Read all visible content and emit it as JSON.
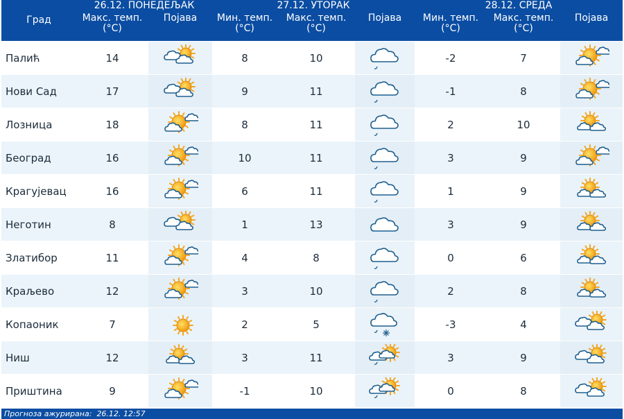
{
  "headers": {
    "city": "Град",
    "day1": "26.12. ПОНЕДЕЉАК",
    "day2": "27.12. УТОРАК",
    "day3": "28.12. СРЕДА",
    "max_temp": "Макс. темп. (°C)",
    "min_temp": "Мин. темп. (°C)",
    "phenomenon": "Појава"
  },
  "rows": [
    {
      "city": "Палић",
      "d1_max": "14",
      "d1_icon": "cloudy-sun",
      "d2_min": "8",
      "d2_max": "10",
      "d2_icon": "cloud-drizzle",
      "d3_min": "-2",
      "d3_max": "7",
      "d3_icon": "sun-cloud"
    },
    {
      "city": "Нови Сад",
      "d1_max": "17",
      "d1_icon": "cloudy-sun",
      "d2_min": "9",
      "d2_max": "11",
      "d2_icon": "cloud-drizzle",
      "d3_min": "-1",
      "d3_max": "8",
      "d3_icon": "sun-cloud"
    },
    {
      "city": "Лозница",
      "d1_max": "18",
      "d1_icon": "sun-cloud",
      "d2_min": "8",
      "d2_max": "11",
      "d2_icon": "cloud-drizzle",
      "d3_min": "2",
      "d3_max": "10",
      "d3_icon": "partly-cloudy"
    },
    {
      "city": "Београд",
      "d1_max": "16",
      "d1_icon": "sun-cloud",
      "d2_min": "10",
      "d2_max": "11",
      "d2_icon": "cloud-drizzle",
      "d3_min": "3",
      "d3_max": "9",
      "d3_icon": "sun-cloud"
    },
    {
      "city": "Крагујевац",
      "d1_max": "16",
      "d1_icon": "sun-cloud",
      "d2_min": "6",
      "d2_max": "11",
      "d2_icon": "cloud-drizzle",
      "d3_min": "1",
      "d3_max": "9",
      "d3_icon": "partly-cloudy"
    },
    {
      "city": "Неготин",
      "d1_max": "8",
      "d1_icon": "cloudy-sun",
      "d2_min": "1",
      "d2_max": "13",
      "d2_icon": "cloud",
      "d3_min": "3",
      "d3_max": "9",
      "d3_icon": "partly-cloudy"
    },
    {
      "city": "Златибор",
      "d1_max": "11",
      "d1_icon": "sun-cloud",
      "d2_min": "4",
      "d2_max": "8",
      "d2_icon": "cloud-drizzle",
      "d3_min": "0",
      "d3_max": "6",
      "d3_icon": "partly-cloudy"
    },
    {
      "city": "Краљево",
      "d1_max": "12",
      "d1_icon": "sun-cloud",
      "d2_min": "3",
      "d2_max": "10",
      "d2_icon": "cloud-drizzle",
      "d3_min": "2",
      "d3_max": "8",
      "d3_icon": "partly-cloudy"
    },
    {
      "city": "Копаоник",
      "d1_max": "7",
      "d1_icon": "sun",
      "d2_min": "2",
      "d2_max": "5",
      "d2_icon": "cloud-snow",
      "d3_min": "-3",
      "d3_max": "4",
      "d3_icon": "cloudy-sun"
    },
    {
      "city": "Ниш",
      "d1_max": "12",
      "d1_icon": "partly-cloudy",
      "d2_min": "3",
      "d2_max": "11",
      "d2_icon": "sun-cloud-drizzle",
      "d3_min": "3",
      "d3_max": "9",
      "d3_icon": "cloudy-sun"
    },
    {
      "city": "Приштина",
      "d1_max": "9",
      "d1_icon": "sun-cloud",
      "d2_min": "-1",
      "d2_max": "10",
      "d2_icon": "sun-cloud-drizzle",
      "d3_min": "0",
      "d3_max": "8",
      "d3_icon": "cloudy-sun"
    }
  ],
  "footer": {
    "label": "Прогноза ажурирана:",
    "date": "26.12.",
    "time": "12:57"
  },
  "colors": {
    "header_bg": "#0b4da2",
    "row_alt": "#ebf4fa",
    "sun": "#f5a623",
    "cloud_stroke": "#1f5f8f"
  }
}
